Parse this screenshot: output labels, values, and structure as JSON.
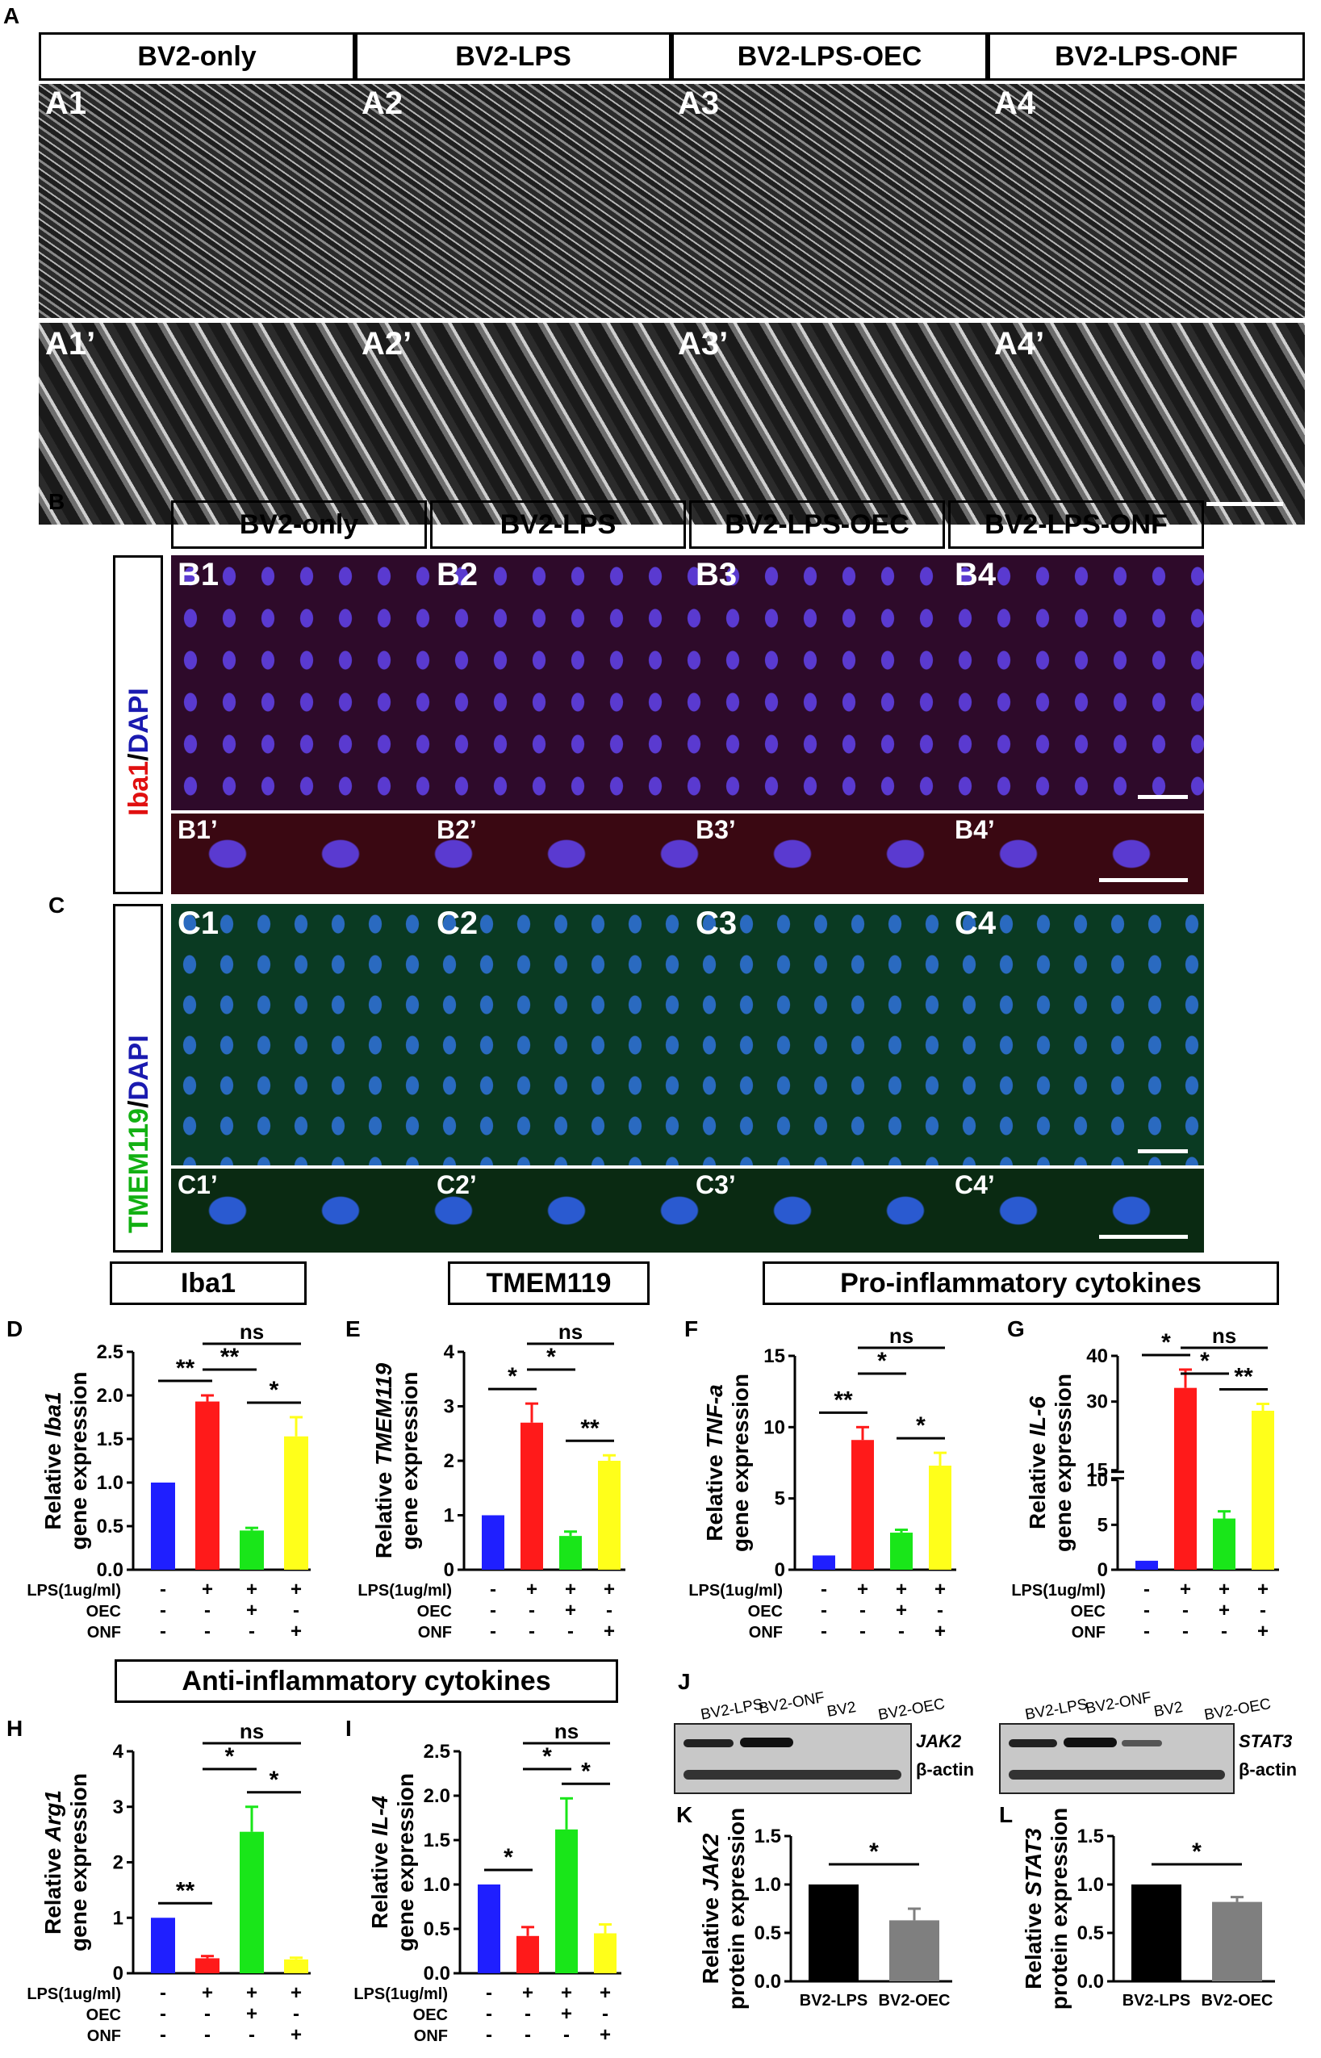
{
  "panels": {
    "A": "A",
    "B": "B",
    "C": "C",
    "D": "D",
    "E": "E",
    "F": "F",
    "G": "G",
    "H": "H",
    "I": "I",
    "J": "J",
    "K": "K",
    "L": "L"
  },
  "groups": [
    "BV2-only",
    "BV2-LPS",
    "BV2-LPS-OEC",
    "BV2-LPS-ONF"
  ],
  "A": {
    "top": [
      "A1",
      "A2",
      "A3",
      "A4"
    ],
    "zoom": [
      "A1’",
      "A2’",
      "A3’",
      "A4’"
    ]
  },
  "B": {
    "top": [
      "B1",
      "B2",
      "B3",
      "B4"
    ],
    "zoom": [
      "B1’",
      "B2’",
      "B3’",
      "B4’"
    ],
    "stain_red": "Iba1",
    "stain_sep": "/",
    "stain_blue": "DAPI"
  },
  "C": {
    "top": [
      "C1",
      "C2",
      "C3",
      "C4"
    ],
    "zoom": [
      "C1’",
      "C2’",
      "C3’",
      "C4’"
    ],
    "stain_green": "TMEM119",
    "stain_sep": "/",
    "stain_blue": "DAPI"
  },
  "section_titles": {
    "iba1": "Iba1",
    "tmem": "TMEM119",
    "pro": "Pro-inflammatory cytokines",
    "anti": "Anti-inflammatory cytokines"
  },
  "colors": {
    "blue": "#1f1fff",
    "red": "#ff1a1a",
    "green": "#19e619",
    "yellow": "#ffff1a",
    "black": "#000000",
    "gray": "#7f7f7f"
  },
  "condition_labels": [
    "LPS(1ug/ml)",
    "OEC",
    "ONF"
  ],
  "condition_signs": [
    [
      "-",
      "+",
      "+",
      "+"
    ],
    [
      "-",
      "-",
      "+",
      "-"
    ],
    [
      "-",
      "-",
      "-",
      "+"
    ]
  ],
  "J": {
    "left_lanes": [
      "BV2-LPS",
      "BV2-ONF",
      "BV2",
      "BV2-OEC"
    ],
    "right_lanes": [
      "BV2-LPS",
      "BV2-ONF",
      "BV2",
      "BV2-OEC"
    ],
    "left_protein": "JAK2",
    "right_protein": "STAT3",
    "loading": "β-actin"
  },
  "chart_data": [
    {
      "panel": "D",
      "type": "bar",
      "ylabel_pre": "Relative ",
      "ylabel_gene": "Iba1",
      "ylabel2": "gene expression",
      "ylim": [
        0,
        2.5
      ],
      "yticks": [
        "0.0",
        "0.5",
        "1.0",
        "1.5",
        "2.0",
        "2.5"
      ],
      "values": [
        1.0,
        1.93,
        0.45,
        1.53
      ],
      "errors": [
        0,
        0.07,
        0.03,
        0.22
      ],
      "colors": [
        "#1f1fff",
        "#ff1a1a",
        "#19e619",
        "#ffff1a"
      ],
      "sig": [
        {
          "a": 0,
          "b": 1,
          "t": "**"
        },
        {
          "a": 1,
          "b": 2,
          "t": "**"
        },
        {
          "a": 1,
          "b": 3,
          "t": "ns"
        },
        {
          "a": 2,
          "b": 3,
          "t": "*"
        }
      ]
    },
    {
      "panel": "E",
      "type": "bar",
      "ylabel_pre": "Relative ",
      "ylabel_gene": "TMEM119",
      "ylabel2": "gene expression",
      "ylim": [
        0,
        4
      ],
      "yticks": [
        "0",
        "1",
        "2",
        "3",
        "4"
      ],
      "values": [
        1.0,
        2.7,
        0.62,
        2.0
      ],
      "errors": [
        0,
        0.35,
        0.08,
        0.1
      ],
      "colors": [
        "#1f1fff",
        "#ff1a1a",
        "#19e619",
        "#ffff1a"
      ],
      "sig": [
        {
          "a": 0,
          "b": 1,
          "t": "*"
        },
        {
          "a": 1,
          "b": 2,
          "t": "*"
        },
        {
          "a": 1,
          "b": 3,
          "t": "ns"
        },
        {
          "a": 2,
          "b": 3,
          "t": "**"
        }
      ]
    },
    {
      "panel": "F",
      "type": "bar",
      "ylabel_pre": "Relative ",
      "ylabel_gene": "TNF-a",
      "ylabel2": "gene expression",
      "ylim": [
        0,
        15
      ],
      "yticks": [
        "0",
        "5",
        "10",
        "15"
      ],
      "values": [
        1.0,
        9.1,
        2.6,
        7.3
      ],
      "errors": [
        0,
        0.9,
        0.2,
        0.9
      ],
      "colors": [
        "#1f1fff",
        "#ff1a1a",
        "#19e619",
        "#ffff1a"
      ],
      "sig": [
        {
          "a": 0,
          "b": 1,
          "t": "**"
        },
        {
          "a": 1,
          "b": 2,
          "t": "*"
        },
        {
          "a": 1,
          "b": 3,
          "t": "ns"
        },
        {
          "a": 2,
          "b": 3,
          "t": "*"
        }
      ]
    },
    {
      "panel": "G",
      "type": "bar",
      "ylabel_pre": "Relative ",
      "ylabel_gene": "IL-6",
      "ylabel2": "gene expression",
      "ylim": [
        0,
        40
      ],
      "yticks": [
        "0",
        "5",
        "10",
        "15",
        "30",
        "40"
      ],
      "axis_break": [
        10,
        15
      ],
      "values": [
        1.0,
        33,
        5.7,
        28
      ],
      "errors": [
        0,
        4,
        0.8,
        1.5
      ],
      "colors": [
        "#1f1fff",
        "#ff1a1a",
        "#19e619",
        "#ffff1a"
      ],
      "sig": [
        {
          "a": 0,
          "b": 1,
          "t": "*"
        },
        {
          "a": 1,
          "b": 2,
          "t": "*"
        },
        {
          "a": 1,
          "b": 3,
          "t": "ns"
        },
        {
          "a": 2,
          "b": 3,
          "t": "**"
        }
      ]
    },
    {
      "panel": "H",
      "type": "bar",
      "ylabel_pre": "Relative ",
      "ylabel_gene": "Arg1",
      "ylabel2": "gene expression",
      "ylim": [
        0,
        4
      ],
      "yticks": [
        "0",
        "1",
        "2",
        "3",
        "4"
      ],
      "values": [
        1.0,
        0.27,
        2.55,
        0.25
      ],
      "errors": [
        0,
        0.04,
        0.45,
        0.03
      ],
      "colors": [
        "#1f1fff",
        "#ff1a1a",
        "#19e619",
        "#ffff1a"
      ],
      "sig": [
        {
          "a": 0,
          "b": 1,
          "t": "**"
        },
        {
          "a": 1,
          "b": 2,
          "t": "*"
        },
        {
          "a": 1,
          "b": 3,
          "t": "ns"
        },
        {
          "a": 2,
          "b": 3,
          "t": "*"
        }
      ]
    },
    {
      "panel": "I",
      "type": "bar",
      "ylabel_pre": "Relative ",
      "ylabel_gene": "IL-4",
      "ylabel2": "gene expression",
      "ylim": [
        0,
        2.5
      ],
      "yticks": [
        "0.0",
        "0.5",
        "1.0",
        "1.5",
        "2.0",
        "2.5"
      ],
      "values": [
        1.0,
        0.42,
        1.62,
        0.45
      ],
      "errors": [
        0,
        0.1,
        0.35,
        0.1
      ],
      "colors": [
        "#1f1fff",
        "#ff1a1a",
        "#19e619",
        "#ffff1a"
      ],
      "sig": [
        {
          "a": 0,
          "b": 1,
          "t": "*"
        },
        {
          "a": 1,
          "b": 2,
          "t": "*"
        },
        {
          "a": 1,
          "b": 3,
          "t": "ns"
        },
        {
          "a": 2,
          "b": 3,
          "t": "*"
        }
      ]
    },
    {
      "panel": "K",
      "type": "bar",
      "ylabel_pre": "Relative ",
      "ylabel_gene": "JAK2",
      "ylabel2": "protein expression",
      "ylim": [
        0,
        1.5
      ],
      "yticks": [
        "0.0",
        "0.5",
        "1.0",
        "1.5"
      ],
      "categories": [
        "BV2-LPS",
        "BV2-OEC"
      ],
      "values": [
        1.0,
        0.63
      ],
      "errors": [
        0,
        0.12
      ],
      "colors": [
        "#000000",
        "#7f7f7f"
      ],
      "sig": [
        {
          "a": 0,
          "b": 1,
          "t": "*"
        }
      ]
    },
    {
      "panel": "L",
      "type": "bar",
      "ylabel_pre": "Relative ",
      "ylabel_gene": "STAT3",
      "ylabel2": "protein expression",
      "ylim": [
        0,
        1.5
      ],
      "yticks": [
        "0.0",
        "0.5",
        "1.0",
        "1.5"
      ],
      "categories": [
        "BV2-LPS",
        "BV2-OEC"
      ],
      "values": [
        1.0,
        0.82
      ],
      "errors": [
        0,
        0.05
      ],
      "colors": [
        "#000000",
        "#7f7f7f"
      ],
      "sig": [
        {
          "a": 0,
          "b": 1,
          "t": "*"
        }
      ]
    }
  ]
}
